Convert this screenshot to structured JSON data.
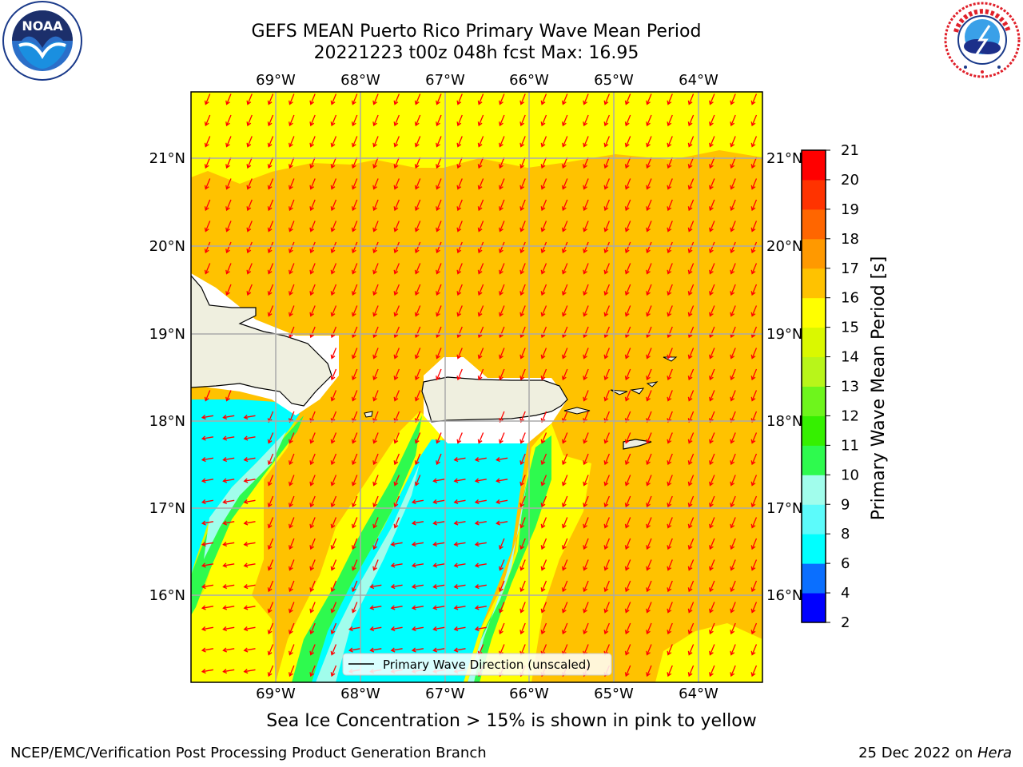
{
  "header": {
    "title_line1": "GEFS MEAN Puerto Rico Primary Wave Mean Period",
    "title_line2": "20221223 t00z 048h fcst   Max: 16.95"
  },
  "map": {
    "lon_labels": [
      "69°W",
      "68°W",
      "67°W",
      "66°W",
      "65°W",
      "64°W"
    ],
    "lat_labels": [
      "21°N",
      "20°N",
      "19°N",
      "18°N",
      "17°N",
      "16°N"
    ],
    "legend_label": "Primary Wave Direction (unscaled)",
    "land_color": "#efefdf",
    "arrow_color": "#ff0000"
  },
  "colorbar": {
    "label": "Primary Wave Mean Period [s]",
    "ticks": [
      "2",
      "4",
      "6",
      "8",
      "9",
      "10",
      "11",
      "12",
      "13",
      "14",
      "15",
      "16",
      "17",
      "18",
      "19",
      "20",
      "21"
    ],
    "colors": [
      "#0000ff",
      "#0a6fff",
      "#00ffff",
      "#5cfbfb",
      "#a1fdec",
      "#2efa4e",
      "#35f000",
      "#6ef51c",
      "#b8f51a",
      "#daf800",
      "#ffff00",
      "#ffc200",
      "#ff9900",
      "#ff6600",
      "#ff3300",
      "#ff0000"
    ]
  },
  "note": "Sea Ice Concentration > 15% is shown in pink to yellow",
  "footer": {
    "left": "NCEP/EMC/Verification Post Processing Product Generation Branch",
    "right_date": "25 Dec 2022 on ",
    "right_host": "Hera"
  }
}
